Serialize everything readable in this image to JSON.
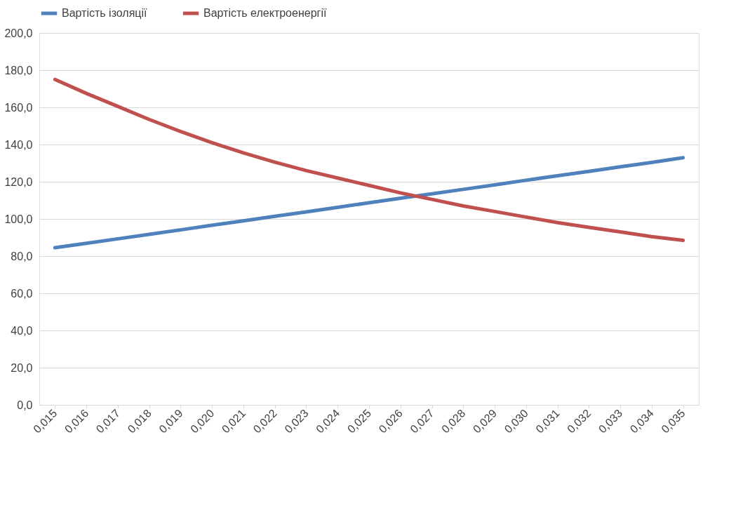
{
  "chart_data": {
    "type": "line",
    "categories": [
      "0,015",
      "0,016",
      "0,017",
      "0,018",
      "0,019",
      "0,020",
      "0,021",
      "0,022",
      "0,023",
      "0,024",
      "0,025",
      "0,026",
      "0,027",
      "0,028",
      "0,029",
      "0,030",
      "0,031",
      "0,032",
      "0,033",
      "0,034",
      "0,035"
    ],
    "series": [
      {
        "name": "Вартість ізоляції",
        "color": "#4f81bd",
        "values": [
          84.5,
          86.9,
          89.3,
          91.7,
          94.1,
          96.6,
          99.0,
          101.4,
          103.8,
          106.2,
          108.7,
          111.1,
          113.5,
          115.9,
          118.3,
          120.8,
          123.2,
          125.6,
          128.0,
          130.4,
          132.9
        ]
      },
      {
        "name": "Вартість електроенергії",
        "color": "#c0504d",
        "values": [
          175.0,
          167.5,
          160.5,
          153.5,
          147.0,
          141.0,
          135.5,
          130.5,
          126.0,
          122.0,
          118.0,
          114.0,
          110.5,
          107.0,
          104.0,
          101.0,
          98.0,
          95.5,
          93.0,
          90.5,
          88.5
        ]
      }
    ],
    "ylim": [
      0,
      200
    ],
    "yticks": [
      {
        "value": 0,
        "label": "0,0"
      },
      {
        "value": 20,
        "label": "20,0"
      },
      {
        "value": 40,
        "label": "40,0"
      },
      {
        "value": 60,
        "label": "60,0"
      },
      {
        "value": 80,
        "label": "80,0"
      },
      {
        "value": 100,
        "label": "100,0"
      },
      {
        "value": 120,
        "label": "120,0"
      },
      {
        "value": 140,
        "label": "140,0"
      },
      {
        "value": 160,
        "label": "160,0"
      },
      {
        "value": 180,
        "label": "180,0"
      },
      {
        "value": 200,
        "label": "200,0"
      }
    ],
    "grid": "y",
    "legend": "top",
    "marker": "none",
    "line_style": "solid"
  }
}
